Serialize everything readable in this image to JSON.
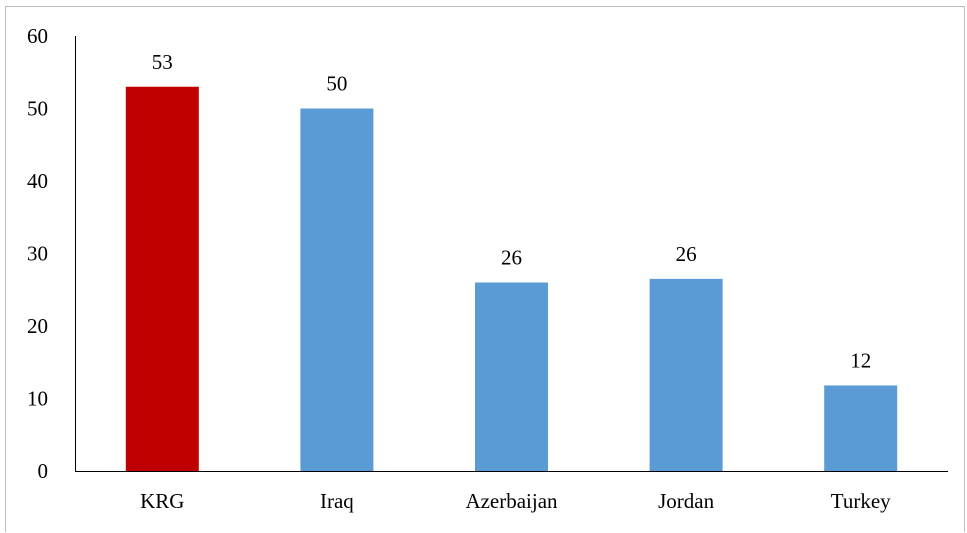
{
  "chart_data": {
    "type": "bar",
    "title": "",
    "xlabel": "",
    "ylabel": "",
    "categories": [
      "KRG",
      "Iraq",
      "Azerbaijan",
      "Jordan",
      "Turkey"
    ],
    "values": [
      53,
      50,
      26,
      26,
      12
    ],
    "exact_values": [
      53,
      50,
      26,
      26.5,
      11.8
    ],
    "data_labels": [
      "53",
      "50",
      "26",
      "26",
      "12"
    ],
    "ylim": [
      0,
      60
    ],
    "yticks": [
      0,
      10,
      20,
      30,
      40,
      50,
      60
    ],
    "grid": false,
    "legend": "none",
    "colors": {
      "highlight": "#c00000",
      "default": "#5b9bd5",
      "axis": "#000000",
      "frame": "#bdbdbd"
    },
    "bar_colors": [
      "#c00000",
      "#5b9bd5",
      "#5b9bd5",
      "#5b9bd5",
      "#5b9bd5"
    ]
  }
}
